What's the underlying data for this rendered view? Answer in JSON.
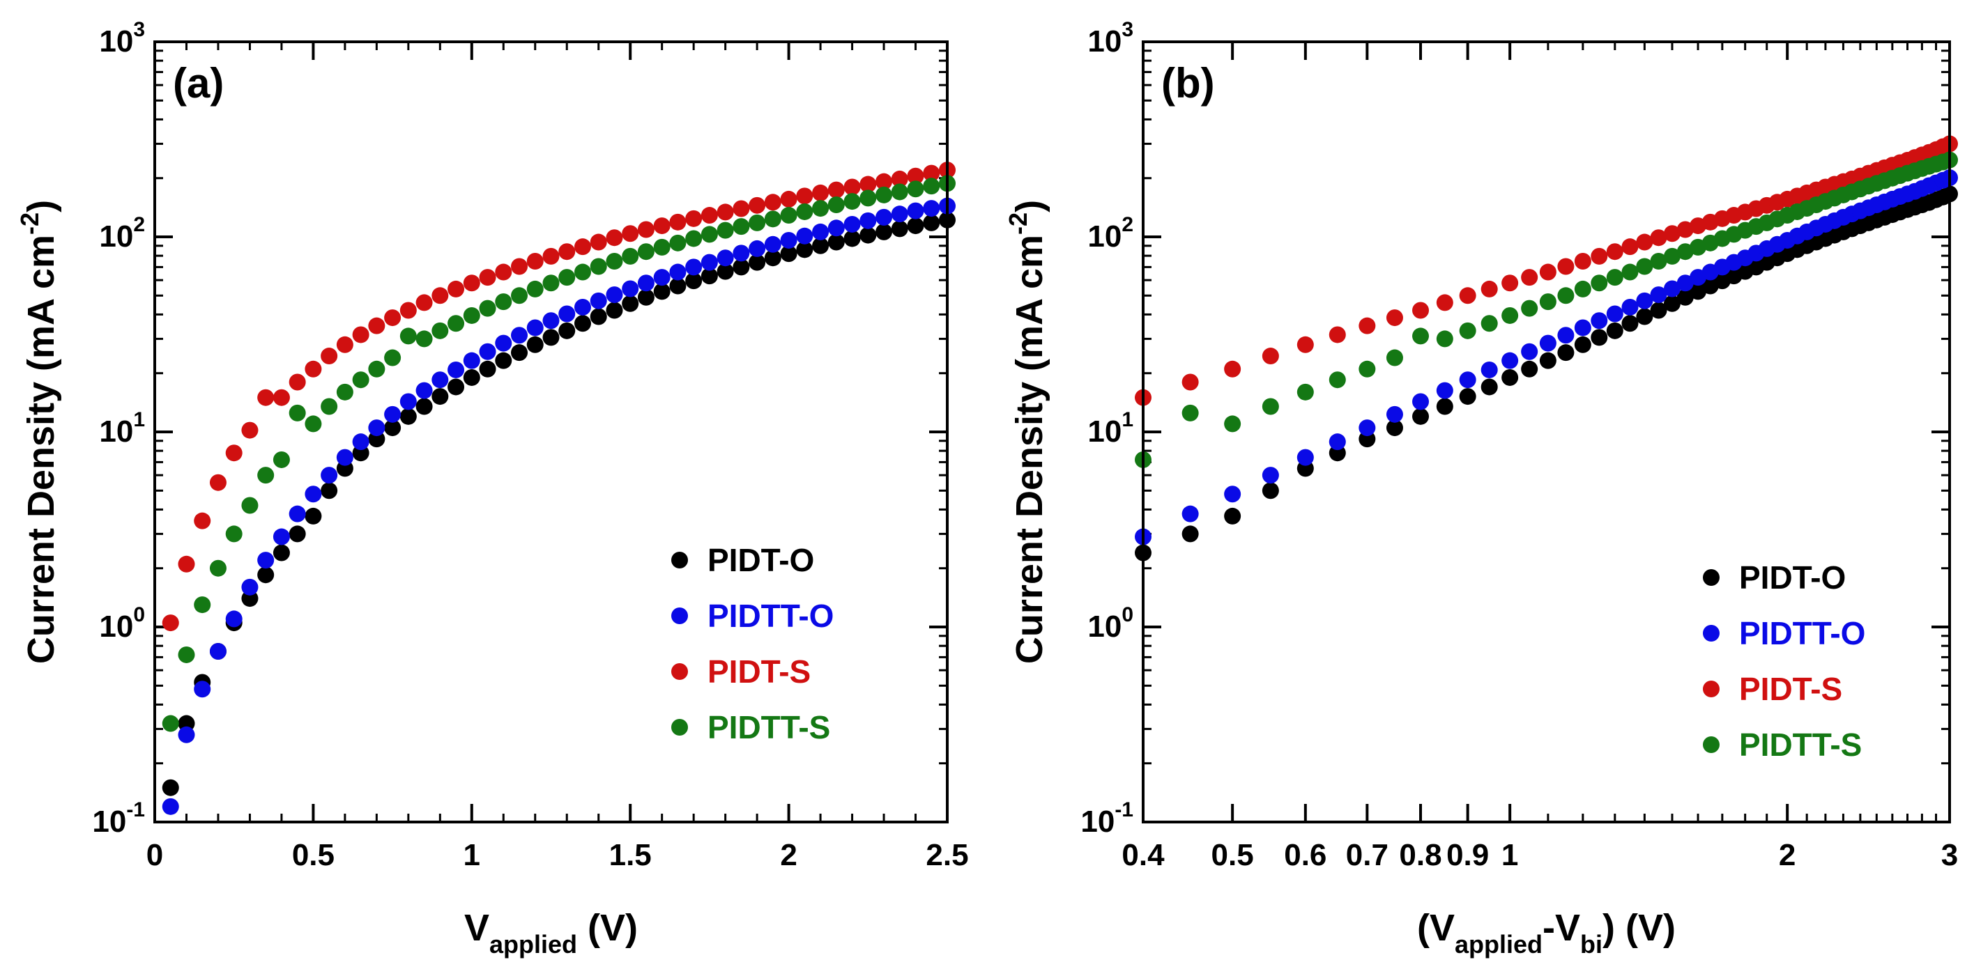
{
  "chart_data": [
    {
      "type": "scatter",
      "panel_label": "(a)",
      "xscale": "linear",
      "yscale": "log",
      "xlim": [
        0,
        2.5
      ],
      "ylim": [
        0.1,
        1000
      ],
      "xticks": [
        {
          "value": 0,
          "label": "0"
        },
        {
          "value": 0.5,
          "label": "0.5"
        },
        {
          "value": 1,
          "label": "1"
        },
        {
          "value": 1.5,
          "label": "1.5"
        },
        {
          "value": 2,
          "label": "2"
        },
        {
          "value": 2.5,
          "label": "2.5"
        }
      ],
      "yticks": [
        {
          "value": 0.1,
          "base": "10",
          "exp": "-1"
        },
        {
          "value": 1,
          "base": "10",
          "exp": "0"
        },
        {
          "value": 10,
          "base": "10",
          "exp": "1"
        },
        {
          "value": 100,
          "base": "10",
          "exp": "2"
        },
        {
          "value": 1000,
          "base": "10",
          "exp": "3"
        }
      ],
      "xlabel": {
        "main": "V",
        "sub": "applied",
        "rest": " (V)"
      },
      "ylabel": {
        "main": "Current Density (mA cm",
        "sup": "-2",
        "rest": ")"
      },
      "legend_position": "lower-right",
      "series": [
        {
          "name": "PIDT-O",
          "color": "#000000",
          "x": [
            0.05,
            0.1,
            0.15,
            0.2,
            0.25,
            0.3,
            0.35,
            0.4,
            0.45,
            0.5,
            0.55,
            0.6,
            0.65,
            0.7,
            0.75,
            0.8,
            0.85,
            0.9,
            0.95,
            1.0,
            1.05,
            1.1,
            1.15,
            1.2,
            1.25,
            1.3,
            1.35,
            1.4,
            1.45,
            1.5,
            1.55,
            1.6,
            1.65,
            1.7,
            1.75,
            1.8,
            1.85,
            1.9,
            1.95,
            2.0,
            2.05,
            2.1,
            2.15,
            2.2,
            2.25,
            2.3,
            2.35,
            2.4,
            2.45,
            2.5
          ],
          "y": [
            0.15,
            0.32,
            0.52,
            0.75,
            1.05,
            1.4,
            1.85,
            2.4,
            3.0,
            3.7,
            5.0,
            6.5,
            7.8,
            9.2,
            10.5,
            12.0,
            13.5,
            15.2,
            17.0,
            19.0,
            21.0,
            23.2,
            25.5,
            28.0,
            30.5,
            33.0,
            36.0,
            39.0,
            42.0,
            45.5,
            49.0,
            52.5,
            56.0,
            59.5,
            63.0,
            66.5,
            70.0,
            74.0,
            78.0,
            82.0,
            86.0,
            90.0,
            94.0,
            98.0,
            102.0,
            106.0,
            110.0,
            114.0,
            118.0,
            122.0
          ]
        },
        {
          "name": "PIDTT-O",
          "color": "#0a0ae6",
          "x": [
            0.05,
            0.1,
            0.15,
            0.2,
            0.25,
            0.3,
            0.35,
            0.4,
            0.45,
            0.5,
            0.55,
            0.6,
            0.65,
            0.7,
            0.75,
            0.8,
            0.85,
            0.9,
            0.95,
            1.0,
            1.05,
            1.1,
            1.15,
            1.2,
            1.25,
            1.3,
            1.35,
            1.4,
            1.45,
            1.5,
            1.55,
            1.6,
            1.65,
            1.7,
            1.75,
            1.8,
            1.85,
            1.9,
            1.95,
            2.0,
            2.05,
            2.1,
            2.15,
            2.2,
            2.25,
            2.3,
            2.35,
            2.4,
            2.45,
            2.5
          ],
          "y": [
            0.12,
            0.28,
            0.48,
            0.75,
            1.1,
            1.6,
            2.2,
            2.9,
            3.8,
            4.8,
            6.0,
            7.4,
            8.9,
            10.5,
            12.3,
            14.3,
            16.3,
            18.5,
            20.8,
            23.2,
            25.8,
            28.5,
            31.3,
            34.2,
            37.2,
            40.3,
            43.6,
            47.0,
            50.5,
            54.2,
            58.0,
            62.0,
            66.0,
            70.0,
            74.0,
            78.0,
            82.5,
            87.0,
            91.5,
            96.0,
            101.0,
            106.0,
            111.0,
            116.0,
            121.0,
            126.0,
            131.0,
            136.0,
            140.0,
            144.0
          ]
        },
        {
          "name": "PIDT-S",
          "color": "#d01010",
          "x": [
            0.05,
            0.1,
            0.15,
            0.2,
            0.25,
            0.3,
            0.35,
            0.4,
            0.45,
            0.5,
            0.55,
            0.6,
            0.65,
            0.7,
            0.75,
            0.8,
            0.85,
            0.9,
            0.95,
            1.0,
            1.05,
            1.1,
            1.15,
            1.2,
            1.25,
            1.3,
            1.35,
            1.4,
            1.45,
            1.5,
            1.55,
            1.6,
            1.65,
            1.7,
            1.75,
            1.8,
            1.85,
            1.9,
            1.95,
            2.0,
            2.05,
            2.1,
            2.15,
            2.2,
            2.25,
            2.3,
            2.35,
            2.4,
            2.45,
            2.5
          ],
          "y": [
            1.05,
            2.1,
            3.5,
            5.5,
            7.8,
            10.2,
            15.0,
            15.0,
            18.0,
            21.0,
            24.5,
            28.0,
            31.5,
            35.0,
            38.5,
            42.0,
            46.0,
            50.0,
            54.0,
            58.0,
            62.0,
            66.0,
            70.5,
            75.0,
            79.5,
            84.0,
            89.0,
            94.0,
            99.0,
            104.0,
            109.0,
            114.0,
            119.0,
            124.0,
            129.0,
            134.0,
            139.5,
            145.0,
            150.5,
            156.0,
            162.0,
            168.0,
            174.0,
            180.0,
            186.0,
            192.0,
            198.0,
            205.0,
            212.0,
            220.0
          ]
        },
        {
          "name": "PIDTT-S",
          "color": "#147814",
          "x": [
            0.05,
            0.1,
            0.15,
            0.2,
            0.25,
            0.3,
            0.35,
            0.4,
            0.45,
            0.5,
            0.55,
            0.6,
            0.65,
            0.7,
            0.75,
            0.8,
            0.85,
            0.9,
            0.95,
            1.0,
            1.05,
            1.1,
            1.15,
            1.2,
            1.25,
            1.3,
            1.35,
            1.4,
            1.45,
            1.5,
            1.55,
            1.6,
            1.65,
            1.7,
            1.75,
            1.8,
            1.85,
            1.9,
            1.95,
            2.0,
            2.05,
            2.1,
            2.15,
            2.2,
            2.25,
            2.3,
            2.35,
            2.4,
            2.45,
            2.5
          ],
          "y": [
            0.32,
            0.72,
            1.3,
            2.0,
            3.0,
            4.2,
            6.0,
            7.2,
            12.5,
            11.0,
            13.5,
            16.0,
            18.5,
            21.0,
            24.0,
            31.0,
            30.0,
            33.0,
            36.0,
            39.5,
            43.0,
            46.5,
            50.0,
            54.0,
            58.0,
            62.0,
            66.0,
            70.5,
            75.0,
            79.5,
            84.0,
            88.5,
            93.0,
            98.0,
            103.0,
            108.0,
            113.0,
            118.0,
            123.5,
            129.0,
            134.5,
            140.0,
            146.0,
            152.0,
            158.0,
            164.0,
            170.0,
            176.0,
            182.0,
            188.0
          ]
        }
      ]
    },
    {
      "type": "scatter",
      "panel_label": "(b)",
      "xscale": "log",
      "yscale": "log",
      "xlim": [
        0.4,
        3
      ],
      "ylim": [
        0.1,
        1000
      ],
      "xticks": [
        {
          "value": 0.4,
          "label": "0.4"
        },
        {
          "value": 0.5,
          "label": "0.5"
        },
        {
          "value": 0.6,
          "label": "0.6"
        },
        {
          "value": 0.7,
          "label": "0.7"
        },
        {
          "value": 0.8,
          "label": "0.8"
        },
        {
          "value": 0.9,
          "label": "0.9"
        },
        {
          "value": 1,
          "label": "1"
        },
        {
          "value": 2,
          "label": "2"
        },
        {
          "value": 3,
          "label": "3"
        }
      ],
      "yticks": [
        {
          "value": 0.1,
          "base": "10",
          "exp": "-1"
        },
        {
          "value": 1,
          "base": "10",
          "exp": "0"
        },
        {
          "value": 10,
          "base": "10",
          "exp": "1"
        },
        {
          "value": 100,
          "base": "10",
          "exp": "2"
        },
        {
          "value": 1000,
          "base": "10",
          "exp": "3"
        }
      ],
      "xlabel": {
        "pre": "(V",
        "sub1": "applied",
        "mid": "-V",
        "sub2": "bi",
        "rest": ") (V)"
      },
      "ylabel": {
        "main": "Current Density (mA cm",
        "sup": "-2",
        "rest": ")"
      },
      "legend_position": "lower-right",
      "series": [
        {
          "name": "PIDT-O",
          "color": "#000000",
          "x": [
            0.4,
            0.45,
            0.5,
            0.55,
            0.6,
            0.65,
            0.7,
            0.75,
            0.8,
            0.85,
            0.9,
            0.95,
            1.0,
            1.05,
            1.1,
            1.15,
            1.2,
            1.25,
            1.3,
            1.35,
            1.4,
            1.45,
            1.5,
            1.55,
            1.6,
            1.65,
            1.7,
            1.75,
            1.8,
            1.85,
            1.9,
            1.95,
            2.0,
            2.05,
            2.1,
            2.15,
            2.2,
            2.25,
            2.3,
            2.35,
            2.4,
            2.45,
            2.5,
            2.55,
            2.6,
            2.65,
            2.7,
            2.75,
            2.8,
            2.85,
            2.9,
            2.95,
            3.0
          ],
          "y": [
            2.4,
            3.0,
            3.7,
            5.0,
            6.5,
            7.8,
            9.2,
            10.5,
            12.0,
            13.5,
            15.2,
            17.0,
            19.0,
            21.0,
            23.2,
            25.5,
            28.0,
            30.5,
            33.0,
            36.0,
            39.0,
            42.0,
            45.5,
            49.0,
            52.5,
            56.0,
            59.5,
            63.0,
            66.5,
            70.0,
            74.0,
            78.0,
            82.0,
            86.0,
            90.0,
            94.0,
            98.0,
            102.0,
            106.0,
            110.0,
            114.0,
            118.0,
            122.0,
            126.0,
            130.0,
            134.0,
            138.0,
            142.0,
            146.0,
            150.0,
            155.0,
            160.0,
            166.0
          ]
        },
        {
          "name": "PIDTT-O",
          "color": "#0a0ae6",
          "x": [
            0.4,
            0.45,
            0.5,
            0.55,
            0.6,
            0.65,
            0.7,
            0.75,
            0.8,
            0.85,
            0.9,
            0.95,
            1.0,
            1.05,
            1.1,
            1.15,
            1.2,
            1.25,
            1.3,
            1.35,
            1.4,
            1.45,
            1.5,
            1.55,
            1.6,
            1.65,
            1.7,
            1.75,
            1.8,
            1.85,
            1.9,
            1.95,
            2.0,
            2.05,
            2.1,
            2.15,
            2.2,
            2.25,
            2.3,
            2.35,
            2.4,
            2.45,
            2.5,
            2.55,
            2.6,
            2.65,
            2.7,
            2.75,
            2.8,
            2.85,
            2.9,
            2.95,
            3.0
          ],
          "y": [
            2.9,
            3.8,
            4.8,
            6.0,
            7.4,
            8.9,
            10.5,
            12.3,
            14.3,
            16.3,
            18.5,
            20.8,
            23.2,
            25.8,
            28.5,
            31.3,
            34.2,
            37.2,
            40.3,
            43.6,
            47.0,
            50.5,
            54.2,
            58.0,
            62.0,
            66.0,
            70.0,
            74.0,
            78.0,
            82.5,
            87.0,
            91.5,
            96.0,
            101.0,
            106.0,
            111.0,
            116.0,
            121.0,
            126.0,
            131.0,
            136.0,
            141.0,
            146.0,
            151.0,
            156.0,
            161.0,
            166.0,
            171.0,
            177.0,
            183.0,
            189.0,
            195.0,
            201.0
          ]
        },
        {
          "name": "PIDT-S",
          "color": "#d01010",
          "x": [
            0.4,
            0.45,
            0.5,
            0.55,
            0.6,
            0.65,
            0.7,
            0.75,
            0.8,
            0.85,
            0.9,
            0.95,
            1.0,
            1.05,
            1.1,
            1.15,
            1.2,
            1.25,
            1.3,
            1.35,
            1.4,
            1.45,
            1.5,
            1.55,
            1.6,
            1.65,
            1.7,
            1.75,
            1.8,
            1.85,
            1.9,
            1.95,
            2.0,
            2.05,
            2.1,
            2.15,
            2.2,
            2.25,
            2.3,
            2.35,
            2.4,
            2.45,
            2.5,
            2.55,
            2.6,
            2.65,
            2.7,
            2.75,
            2.8,
            2.85,
            2.9,
            2.95,
            3.0
          ],
          "y": [
            15.0,
            18.0,
            21.0,
            24.5,
            28.0,
            31.5,
            35.0,
            38.5,
            42.0,
            46.0,
            50.0,
            54.0,
            58.0,
            62.0,
            66.0,
            70.5,
            75.0,
            79.5,
            84.0,
            89.0,
            94.0,
            99.0,
            104.0,
            109.0,
            114.0,
            119.0,
            124.0,
            129.0,
            134.0,
            139.5,
            145.0,
            150.5,
            156.0,
            162.0,
            168.0,
            174.0,
            180.0,
            186.0,
            192.0,
            198.0,
            205.0,
            212.0,
            219.0,
            226.0,
            233.0,
            240.0,
            247.0,
            255.0,
            263.0,
            271.0,
            280.0,
            290.0,
            300.0
          ]
        },
        {
          "name": "PIDTT-S",
          "color": "#147814",
          "x": [
            0.4,
            0.45,
            0.5,
            0.55,
            0.6,
            0.65,
            0.7,
            0.75,
            0.8,
            0.85,
            0.9,
            0.95,
            1.0,
            1.05,
            1.1,
            1.15,
            1.2,
            1.25,
            1.3,
            1.35,
            1.4,
            1.45,
            1.5,
            1.55,
            1.6,
            1.65,
            1.7,
            1.75,
            1.8,
            1.85,
            1.9,
            1.95,
            2.0,
            2.05,
            2.1,
            2.15,
            2.2,
            2.25,
            2.3,
            2.35,
            2.4,
            2.45,
            2.5,
            2.55,
            2.6,
            2.65,
            2.7,
            2.75,
            2.8,
            2.85,
            2.9,
            2.95,
            3.0
          ],
          "y": [
            7.2,
            12.5,
            11.0,
            13.5,
            16.0,
            18.5,
            21.0,
            24.0,
            31.0,
            30.0,
            33.0,
            36.0,
            39.5,
            43.0,
            46.5,
            50.0,
            54.0,
            58.0,
            62.0,
            66.0,
            70.5,
            75.0,
            79.5,
            84.0,
            88.5,
            93.0,
            98.0,
            103.0,
            108.0,
            113.0,
            118.0,
            123.5,
            129.0,
            134.5,
            140.0,
            146.0,
            152.0,
            158.0,
            164.0,
            170.0,
            176.0,
            182.0,
            188.0,
            194.0,
            200.0,
            206.0,
            212.0,
            218.0,
            224.0,
            230.0,
            236.0,
            242.0,
            248.0
          ]
        }
      ]
    }
  ]
}
